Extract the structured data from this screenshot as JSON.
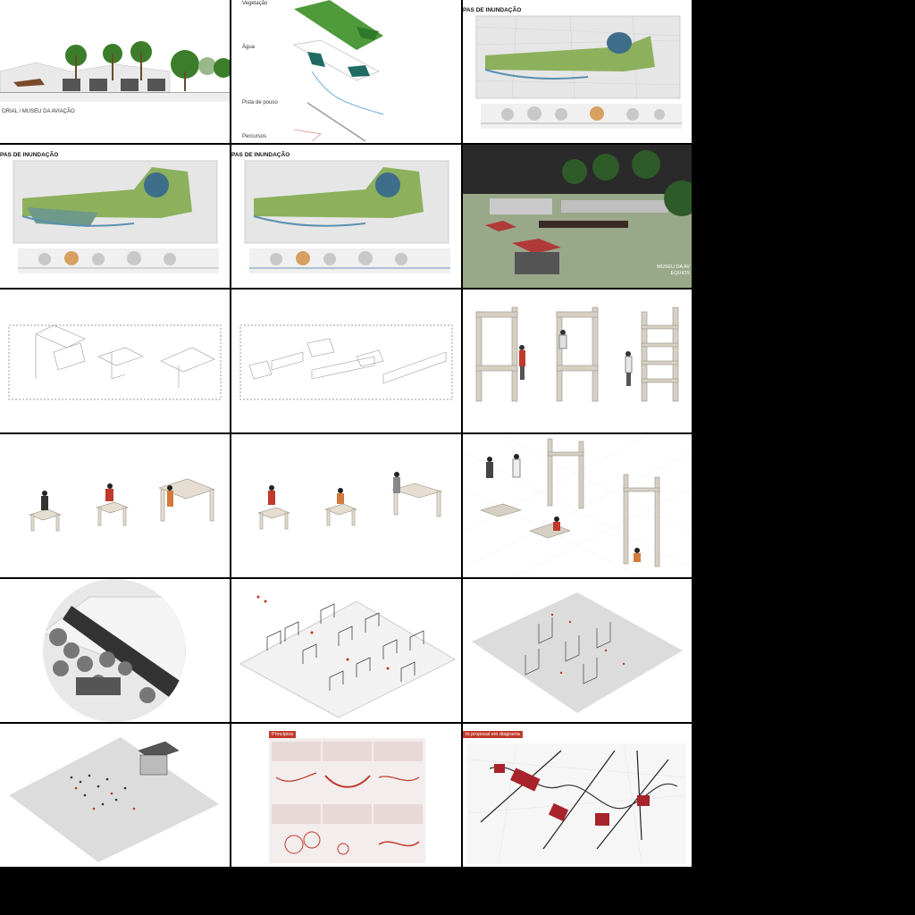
{
  "tiles": {
    "t1": {
      "caption": "ORIAL / MUSEU DA AVIAÇÃO"
    },
    "t2": {
      "labels": [
        "Vegetação",
        "Água",
        "Pista de pouso",
        "Percursos"
      ]
    },
    "t3": {
      "header": "PAS DE INUNDAÇÃO"
    },
    "t4": {
      "header": "PAS DE INUNDAÇÃO"
    },
    "t5": {
      "header": "PAS DE INUNDAÇÃO"
    },
    "t6": {
      "caption1": "MUSEU DA AV",
      "caption2": "EQUIOS"
    },
    "t17": {
      "tag": "Princípios"
    },
    "t18": {
      "tag": "to proposal em diagrama"
    }
  },
  "colors": {
    "accent_red": "#c0392b",
    "green": "#6a9a3a",
    "teal": "#1f6b63",
    "gray": "#cfcfcf"
  }
}
